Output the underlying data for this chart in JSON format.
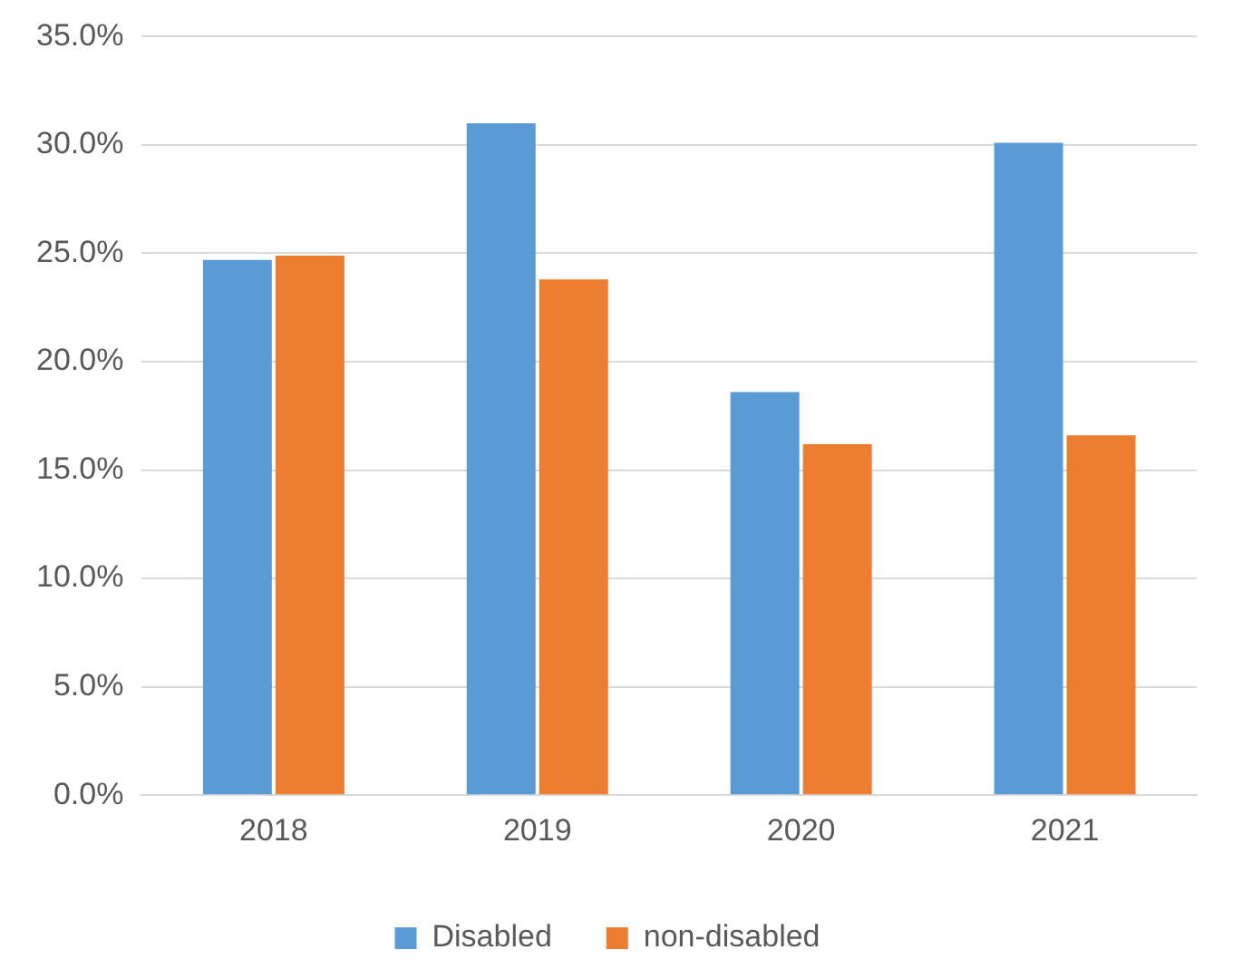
{
  "chart_data": {
    "type": "bar",
    "categories": [
      "2018",
      "2019",
      "2020",
      "2021"
    ],
    "series": [
      {
        "name": "Disabled",
        "color": "#5b9bd5",
        "values": [
          24.7,
          31.0,
          18.6,
          30.1
        ]
      },
      {
        "name": "non-disabled",
        "color": "#ed7d31",
        "values": [
          24.9,
          23.8,
          16.2,
          16.6
        ]
      }
    ],
    "ylim": [
      0,
      35
    ],
    "yticks": [
      {
        "value": 0,
        "label": "0.0%"
      },
      {
        "value": 5,
        "label": "5.0%"
      },
      {
        "value": 10,
        "label": "10.0%"
      },
      {
        "value": 15,
        "label": "15.0%"
      },
      {
        "value": 20,
        "label": "20.0%"
      },
      {
        "value": 25,
        "label": "25.0%"
      },
      {
        "value": 30,
        "label": "30.0%"
      },
      {
        "value": 35,
        "label": "35.0%"
      }
    ],
    "grid": "y",
    "legend": "bottom"
  }
}
